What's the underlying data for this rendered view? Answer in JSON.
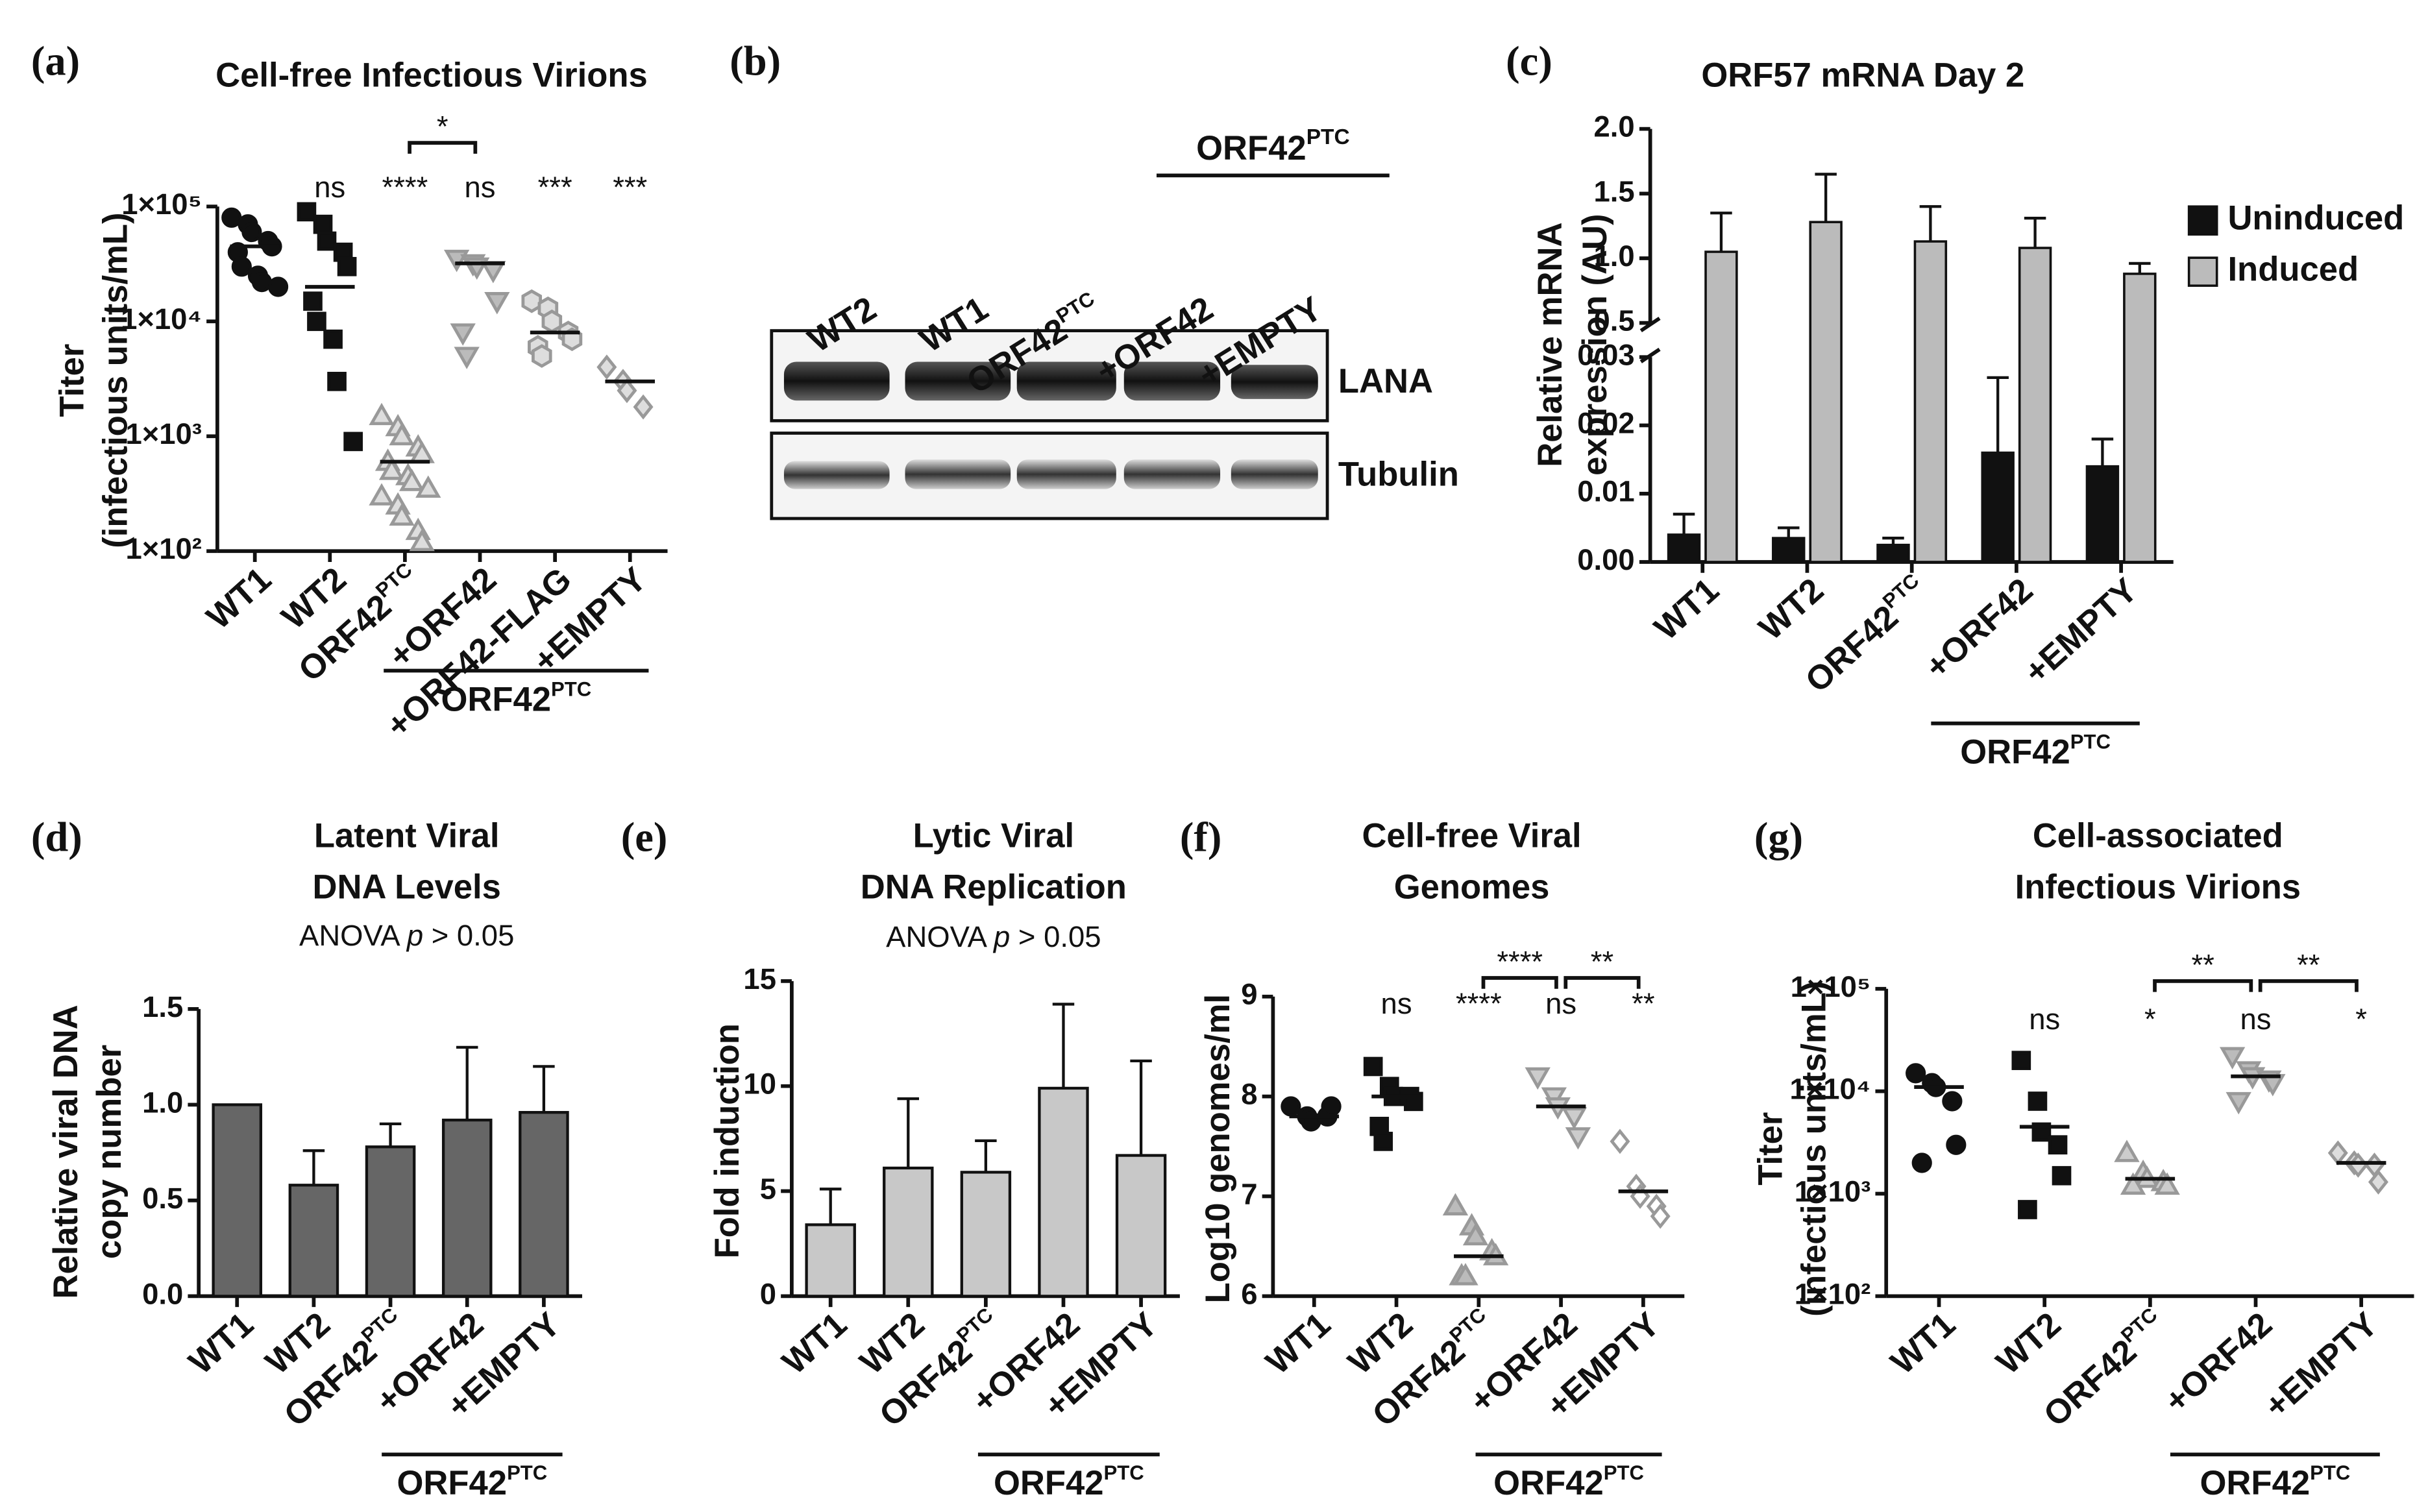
{
  "chart_data": [
    {
      "type": "scatter",
      "panel": "(a)",
      "title": "Cell-free Infectious Virions",
      "ylabel": [
        "Titer",
        "(infectious units/mL)"
      ],
      "categories": [
        "WT1",
        "WT2",
        "ORF42",
        "+ORF42",
        "+ORF42-FLAG",
        "+EMPTY"
      ],
      "category_sup": [
        null,
        null,
        "PTC",
        null,
        null,
        null
      ],
      "log": true,
      "ylim": [
        100,
        100000
      ],
      "yticks": [
        {
          "value": 100,
          "label": "1×10²"
        },
        {
          "value": 1000,
          "label": "1×10³"
        },
        {
          "value": 10000,
          "label": "1×10⁴"
        },
        {
          "value": 100000,
          "label": "1×10⁵"
        }
      ],
      "markers": [
        "circle",
        "square",
        "triangle-up",
        "triangle-down",
        "hexagon",
        "diamond"
      ],
      "colors": [
        "#111",
        "#111",
        "#999",
        "#999",
        "#999",
        "#999"
      ],
      "fills": [
        "#111",
        "#111",
        "#ddd",
        "#bbb",
        "#ddd",
        "#ddd"
      ],
      "points": [
        [
          80000,
          70000,
          60000,
          50000,
          45000,
          40000,
          30000,
          25000,
          22000,
          20000
        ],
        [
          90000,
          70000,
          50000,
          40000,
          30000,
          15000,
          10000,
          7000,
          3000,
          900
        ],
        [
          1500,
          1200,
          1000,
          800,
          700,
          600,
          500,
          450,
          400,
          350,
          300,
          250,
          200,
          150,
          120
        ],
        [
          35000,
          32000,
          30000,
          28000,
          15000,
          8000,
          5000
        ],
        [
          15000,
          13000,
          10000,
          8000,
          7000,
          6000,
          5000
        ],
        [
          4000,
          3000,
          2500,
          1800
        ]
      ],
      "medians": [
        45000,
        20000,
        600,
        32000,
        8000,
        3000
      ],
      "annotations": [
        null,
        "ns",
        "****",
        "ns",
        "***",
        "***"
      ],
      "brackets": [
        {
          "from": 2,
          "to": 3,
          "label": "*"
        }
      ],
      "group": {
        "from": 3,
        "to": 5,
        "label": "ORF42",
        "sup": "PTC"
      }
    },
    {
      "type": "grouped-bar",
      "panel": "(c)",
      "title": "ORF57 mRNA Day 2",
      "ylabel": [
        "Relative mRNA",
        "expression (AU)"
      ],
      "categories": [
        "WT1",
        "WT2",
        "ORF42",
        "+ORF42",
        "+EMPTY"
      ],
      "category_sup": [
        null,
        null,
        "PTC",
        null,
        null
      ],
      "ylim": [
        0,
        0.03
      ],
      "yticks": [
        {
          "value": 0,
          "label": "0.00"
        },
        0.01,
        0.02,
        0.03
      ],
      "ylim_upper": [
        0.5,
        2.0
      ],
      "yticks_upper": [
        0.5,
        {
          "value": 1.0,
          "label": "1.0"
        },
        1.5,
        {
          "value": 2.0,
          "label": "2.0"
        }
      ],
      "series": [
        {
          "name": "Uninduced",
          "color": "#111",
          "values": [
            0.004,
            0.0035,
            0.0025,
            0.016,
            0.014
          ],
          "errors": [
            0.003,
            0.0015,
            0.001,
            0.011,
            0.004
          ]
        },
        {
          "name": "Induced",
          "color": "#bbb",
          "values": [
            1.05,
            1.28,
            1.13,
            1.08,
            0.88
          ],
          "errors": [
            0.3,
            0.37,
            0.27,
            0.23,
            0.08
          ]
        }
      ],
      "group": {
        "from": 3,
        "to": 4,
        "label": "ORF42",
        "sup": "PTC"
      }
    },
    {
      "type": "bar",
      "panel": "(d)",
      "title": [
        "Latent Viral",
        "DNA Levels"
      ],
      "subtitle": [
        "ANOVA ",
        "p",
        " > 0.05"
      ],
      "ylabel": [
        "Relative viral DNA",
        "copy number"
      ],
      "categories": [
        "WT1",
        "WT2",
        "ORF42",
        "+ORF42",
        "+EMPTY"
      ],
      "category_sup": [
        null,
        null,
        "PTC",
        null,
        null
      ],
      "ylim": [
        0,
        1.5
      ],
      "yticks": [
        {
          "value": 0,
          "label": "0.0"
        },
        0.5,
        {
          "value": 1.0,
          "label": "1.0"
        },
        1.5
      ],
      "values": [
        1.0,
        0.58,
        0.78,
        0.92,
        0.96
      ],
      "errors": [
        null,
        0.18,
        0.12,
        0.38,
        0.24
      ],
      "color": "#666",
      "group": {
        "from": 3,
        "to": 4,
        "label": "ORF42",
        "sup": "PTC"
      }
    },
    {
      "type": "bar",
      "panel": "(e)",
      "title": [
        "Lytic Viral",
        "DNA Replication"
      ],
      "subtitle": [
        "ANOVA ",
        "p",
        " > 0.05"
      ],
      "ylabel": [
        "Fold induction"
      ],
      "categories": [
        "WT1",
        "WT2",
        "ORF42",
        "+ORF42",
        "+EMPTY"
      ],
      "category_sup": [
        null,
        null,
        "PTC",
        null,
        null
      ],
      "ylim": [
        0,
        15
      ],
      "yticks": [
        0,
        5,
        10,
        15
      ],
      "values": [
        3.4,
        6.1,
        5.9,
        9.9,
        6.7
      ],
      "errors": [
        1.7,
        3.3,
        1.5,
        4.0,
        4.5
      ],
      "color": "#c8c8c8",
      "group": {
        "from": 3,
        "to": 4,
        "label": "ORF42",
        "sup": "PTC"
      }
    },
    {
      "type": "scatter",
      "panel": "(f)",
      "title": [
        "Cell-free Viral",
        "Genomes"
      ],
      "ylabel": [
        "Log10 genomes/ml"
      ],
      "categories": [
        "WT1",
        "WT2",
        "ORF42",
        "+ORF42",
        "+EMPTY"
      ],
      "category_sup": [
        null,
        null,
        "PTC",
        null,
        null
      ],
      "ylim": [
        6,
        9
      ],
      "yticks": [
        6,
        7,
        8,
        9
      ],
      "markers": [
        "circle",
        "square",
        "triangle-up",
        "triangle-down",
        "diamond"
      ],
      "colors": [
        "#111",
        "#111",
        "#999",
        "#999",
        "#999"
      ],
      "fills": [
        "#111",
        "#111",
        "#bbb",
        "#ccc",
        "#fff"
      ],
      "points": [
        [
          7.9,
          7.8,
          7.75,
          7.8,
          7.9
        ],
        [
          8.3,
          8.1,
          8.0,
          8.0,
          7.95,
          7.7,
          7.55
        ],
        [
          6.9,
          6.7,
          6.6,
          6.45,
          6.4,
          6.2,
          6.2
        ],
        [
          8.2,
          8.0,
          7.9,
          7.8,
          7.6
        ],
        [
          7.55,
          7.1,
          7.0,
          6.9,
          6.8
        ]
      ],
      "medians": [
        7.8,
        8.0,
        6.4,
        7.9,
        7.05
      ],
      "annotations": [
        null,
        "ns",
        "****",
        "ns",
        "**"
      ],
      "brackets": [
        {
          "from": 2,
          "to": 3,
          "label": "****"
        },
        {
          "from": 3,
          "to": 4,
          "label": "**"
        }
      ],
      "group": {
        "from": 3,
        "to": 4,
        "label": "ORF42",
        "sup": "PTC"
      }
    },
    {
      "type": "scatter",
      "panel": "(g)",
      "title": [
        "Cell-associated",
        "Infectious Virions"
      ],
      "ylabel": [
        "Titer",
        "(infectious units/mL)"
      ],
      "categories": [
        "WT1",
        "WT2",
        "ORF42",
        "+ORF42",
        "+EMPTY"
      ],
      "category_sup": [
        null,
        null,
        "PTC",
        null,
        null
      ],
      "log": true,
      "ylim": [
        100,
        100000
      ],
      "yticks": [
        {
          "value": 100,
          "label": "1×10²"
        },
        {
          "value": 1000,
          "label": "1×10³"
        },
        {
          "value": 10000,
          "label": "1×10⁴"
        },
        {
          "value": 100000,
          "label": "1×10⁵"
        }
      ],
      "markers": [
        "circle",
        "square",
        "triangle-up",
        "triangle-down",
        "diamond"
      ],
      "colors": [
        "#111",
        "#111",
        "#999",
        "#999",
        "#999"
      ],
      "fills": [
        "#111",
        "#111",
        "#ccc",
        "#bbb",
        "#ddd"
      ],
      "points": [
        [
          15000,
          12000,
          11000,
          8000,
          3000,
          2000
        ],
        [
          20000,
          8000,
          4000,
          3000,
          1500,
          700
        ],
        [
          2500,
          1600,
          1400,
          1300,
          1200,
          1200
        ],
        [
          22000,
          16000,
          14000,
          13000,
          12000,
          8000
        ],
        [
          2500,
          2000,
          1900,
          1900,
          1300
        ]
      ],
      "medians": [
        11000,
        4500,
        1400,
        14000,
        2000
      ],
      "annotations": [
        null,
        "ns",
        "*",
        "ns",
        "*"
      ],
      "brackets": [
        {
          "from": 2,
          "to": 3,
          "label": "**"
        },
        {
          "from": 3,
          "to": 4,
          "label": "**"
        }
      ],
      "group": {
        "from": 3,
        "to": 4,
        "label": "ORF42",
        "sup": "PTC"
      }
    }
  ],
  "blot": {
    "panel": "(b)",
    "lanes": [
      "WT2",
      "WT1",
      "ORF42",
      "+ORF42",
      "+EMPTY"
    ],
    "lane_sup": [
      null,
      null,
      "PTC",
      null,
      null
    ],
    "group": {
      "label": "ORF42",
      "sup": "PTC"
    },
    "bands": [
      "LANA",
      "Tubulin"
    ]
  }
}
